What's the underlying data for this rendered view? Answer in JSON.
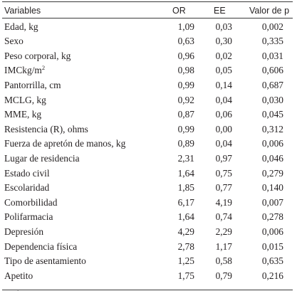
{
  "table": {
    "headers": {
      "variable": "Variables",
      "or": "OR",
      "ee": "EE",
      "p": "Valor de p"
    },
    "rows": [
      {
        "variable": "Edad, kg",
        "or": "1,09",
        "ee": "0,03",
        "p": "0,002"
      },
      {
        "variable": "Sexo",
        "or": "0,63",
        "ee": "0,30",
        "p": "0,335"
      },
      {
        "variable": "Peso corporal, kg",
        "or": "0,96",
        "ee": "0,02",
        "p": "0,031"
      },
      {
        "variable": "IMCkg/m",
        "sup": "2",
        "or": "0,98",
        "ee": "0,05",
        "p": "0,606"
      },
      {
        "variable": "Pantorrilla, cm",
        "or": "0,99",
        "ee": "0,14",
        "p": "0,687"
      },
      {
        "variable": "MCLG, kg",
        "or": "0,92",
        "ee": "0,04",
        "p": "0,030"
      },
      {
        "variable": "MME, kg",
        "or": "0,87",
        "ee": "0,06",
        "p": "0,045"
      },
      {
        "variable": "Resistencia (R), ohms",
        "or": "0,99",
        "ee": "0,00",
        "p": "0,312"
      },
      {
        "variable": "Fuerza de apretón de manos, kg",
        "or": "0,89",
        "ee": "0,04",
        "p": "0,006"
      },
      {
        "variable": "Lugar de residencia",
        "or": "2,31",
        "ee": "0,97",
        "p": "0,046"
      },
      {
        "variable": "Estado civil",
        "or": "1,64",
        "ee": "0,75",
        "p": "0,279"
      },
      {
        "variable": "Escolaridad",
        "or": "1,85",
        "ee": "0,77",
        "p": "0,140"
      },
      {
        "variable": "Comorbilidad",
        "or": "6,17",
        "ee": "4,19",
        "p": "0,007"
      },
      {
        "variable": "Polifarmacia",
        "or": "1,64",
        "ee": "0,74",
        "p": "0,278"
      },
      {
        "variable": "Depresión",
        "or": "4,29",
        "ee": "2,29",
        "p": "0,006"
      },
      {
        "variable": "Dependencia física",
        "or": "2,78",
        "ee": "1,17",
        "p": "0,015"
      },
      {
        "variable": "Tipo de asentamiento",
        "or": "1,25",
        "ee": "0,58",
        "p": "0,635"
      },
      {
        "variable": "Apetito",
        "or": "1,75",
        "ee": "0,79",
        "p": "0,216"
      }
    ],
    "footnote": "´"
  }
}
